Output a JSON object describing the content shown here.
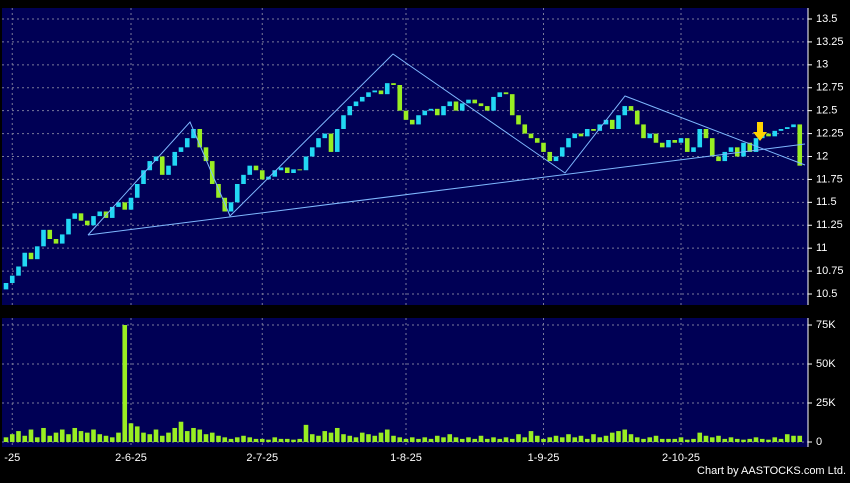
{
  "chart_data": [
    {
      "type": "candlestick",
      "categories": [
        null,
        "-25",
        null,
        null,
        null,
        null,
        null,
        null,
        null,
        null,
        null,
        null,
        null,
        null,
        null,
        null,
        null,
        null,
        null,
        null,
        "2-6-25",
        null,
        null,
        null,
        null,
        null,
        null,
        null,
        null,
        null,
        null,
        null,
        null,
        null,
        null,
        null,
        null,
        null,
        null,
        null,
        null,
        "2-7-25",
        null,
        null,
        null,
        null,
        null,
        null,
        null,
        null,
        null,
        null,
        null,
        null,
        null,
        null,
        null,
        null,
        null,
        null,
        null,
        null,
        null,
        null,
        "1-8-25",
        null,
        null,
        null,
        null,
        null,
        null,
        null,
        null,
        null,
        null,
        null,
        null,
        null,
        null,
        null,
        null,
        null,
        null,
        null,
        null,
        null,
        "1-9-25",
        null,
        null,
        null,
        null,
        null,
        null,
        null,
        null,
        null,
        null,
        null,
        null,
        null,
        null,
        null,
        null,
        null,
        null,
        null,
        null,
        null,
        "2-10-25",
        null,
        null,
        null,
        null,
        null,
        null,
        null,
        null,
        null,
        null,
        null,
        null,
        null,
        null,
        null,
        null,
        null,
        null,
        null
      ],
      "open": [
        10.55,
        10.62,
        10.7,
        10.8,
        10.95,
        10.88,
        11.02,
        11.2,
        11.1,
        11.05,
        11.15,
        11.32,
        11.38,
        11.3,
        11.25,
        11.35,
        11.4,
        11.33,
        11.45,
        11.5,
        11.42,
        11.55,
        11.7,
        11.85,
        11.95,
        12.0,
        11.8,
        11.9,
        12.05,
        12.1,
        12.2,
        12.3,
        12.1,
        11.95,
        11.7,
        11.55,
        11.4,
        11.5,
        11.7,
        11.8,
        11.9,
        11.85,
        11.75,
        11.78,
        11.85,
        11.88,
        11.82,
        11.86,
        11.85,
        12.0,
        12.1,
        12.2,
        12.25,
        12.05,
        12.3,
        12.45,
        12.55,
        12.6,
        12.65,
        12.7,
        12.72,
        12.68,
        12.8,
        12.78,
        12.5,
        12.4,
        12.35,
        12.45,
        12.5,
        12.52,
        12.45,
        12.55,
        12.6,
        12.5,
        12.58,
        12.62,
        12.58,
        12.55,
        12.5,
        12.65,
        12.7,
        12.68,
        12.45,
        12.35,
        12.25,
        12.2,
        12.15,
        12.05,
        11.95,
        12.0,
        12.1,
        12.2,
        12.25,
        12.22,
        12.3,
        12.28,
        12.35,
        12.4,
        12.3,
        12.45,
        12.55,
        12.5,
        12.35,
        12.2,
        12.25,
        12.15,
        12.1,
        12.18,
        12.15,
        12.2,
        12.05,
        12.1,
        12.3,
        12.2,
        12.0,
        11.95,
        12.05,
        12.1,
        12.0,
        12.15,
        12.05,
        12.2,
        12.25,
        12.22,
        12.28,
        12.3,
        12.32,
        12.35
      ],
      "close": [
        10.62,
        10.7,
        10.8,
        10.95,
        10.88,
        11.02,
        11.2,
        11.1,
        11.05,
        11.15,
        11.32,
        11.38,
        11.3,
        11.25,
        11.35,
        11.4,
        11.33,
        11.45,
        11.5,
        11.42,
        11.55,
        11.7,
        11.85,
        11.95,
        12.0,
        11.8,
        11.9,
        12.05,
        12.1,
        12.2,
        12.3,
        12.1,
        11.95,
        11.7,
        11.55,
        11.4,
        11.5,
        11.7,
        11.8,
        11.9,
        11.85,
        11.75,
        11.78,
        11.85,
        11.88,
        11.82,
        11.86,
        11.85,
        12.0,
        12.1,
        12.2,
        12.25,
        12.05,
        12.3,
        12.45,
        12.55,
        12.6,
        12.65,
        12.7,
        12.72,
        12.68,
        12.8,
        12.78,
        12.5,
        12.4,
        12.35,
        12.45,
        12.5,
        12.52,
        12.45,
        12.55,
        12.6,
        12.5,
        12.58,
        12.62,
        12.58,
        12.55,
        12.5,
        12.65,
        12.7,
        12.68,
        12.45,
        12.35,
        12.25,
        12.2,
        12.15,
        12.05,
        11.95,
        12.0,
        12.1,
        12.2,
        12.25,
        12.22,
        12.3,
        12.28,
        12.35,
        12.4,
        12.3,
        12.45,
        12.55,
        12.5,
        12.35,
        12.2,
        12.25,
        12.15,
        12.1,
        12.18,
        12.15,
        12.2,
        12.05,
        12.1,
        12.3,
        12.2,
        12.0,
        11.95,
        12.05,
        12.1,
        12.0,
        12.15,
        12.05,
        12.2,
        12.25,
        12.22,
        12.28,
        12.3,
        12.32,
        12.35,
        11.9
      ],
      "up_color": "#22d8f4",
      "down_color": "#99ee22",
      "ylim": [
        10.38,
        13.62
      ],
      "yticks": [
        10.5,
        10.75,
        11,
        11.25,
        11.5,
        11.75,
        12,
        12.25,
        12.5,
        12.75,
        13,
        13.25,
        13.5
      ],
      "grid": true
    },
    {
      "type": "bar",
      "values": [
        3000,
        5000,
        7000,
        4000,
        8000,
        3000,
        9000,
        4000,
        6000,
        8000,
        5000,
        9000,
        7000,
        6000,
        8000,
        5000,
        4000,
        3000,
        6000,
        75000,
        12000,
        10000,
        6000,
        5000,
        8000,
        4000,
        6000,
        9000,
        13000,
        7000,
        9000,
        8000,
        5000,
        6000,
        4000,
        3000,
        2000,
        3000,
        4000,
        3000,
        2000,
        2000,
        1500,
        3000,
        2000,
        2000,
        1500,
        2000,
        11000,
        5000,
        4000,
        7000,
        6000,
        9000,
        5000,
        4000,
        3000,
        6000,
        5000,
        4000,
        6000,
        8000,
        4000,
        3000,
        2000,
        3000,
        2000,
        3000,
        2000,
        4000,
        3000,
        5000,
        3000,
        2000,
        3000,
        2000,
        4000,
        2000,
        3000,
        2000,
        3000,
        2000,
        5000,
        3000,
        7000,
        4000,
        2000,
        3000,
        4000,
        3000,
        5000,
        3000,
        4000,
        2000,
        5000,
        3000,
        4000,
        6000,
        7000,
        8000,
        5000,
        3000,
        2000,
        3000,
        4000,
        2000,
        2000,
        2000,
        3000,
        1500,
        2000,
        6000,
        4000,
        3000,
        4000,
        2000,
        3000,
        2000,
        1500,
        2000,
        3000,
        2000,
        1500,
        3000,
        2000,
        5000,
        4000,
        4000
      ],
      "color": "#99ee22",
      "ylim": [
        -3200,
        79500
      ],
      "yticks": [
        0,
        {
          "value": 25000,
          "label": "25K"
        },
        {
          "value": 50000,
          "label": "50K"
        },
        {
          "value": 75000,
          "label": "75K"
        }
      ],
      "grid": true
    }
  ],
  "credit": "Chart by AASTOCKS.com Ltd."
}
